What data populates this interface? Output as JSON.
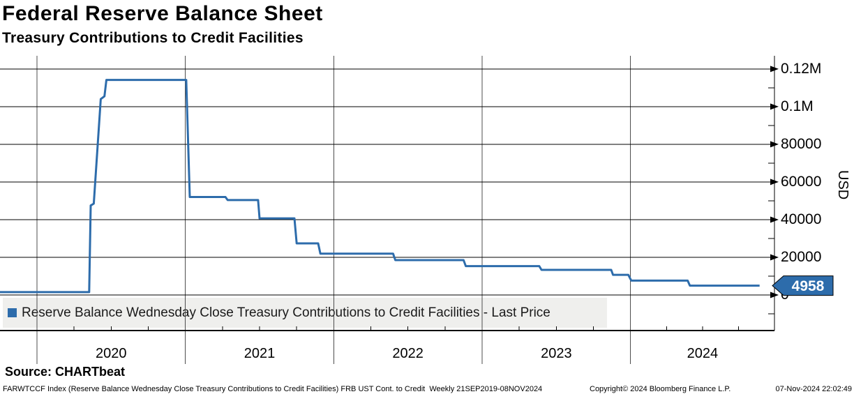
{
  "header": {
    "title": "Federal Reserve Balance Sheet",
    "subtitle": "Treasury Contributions to Credit Facilities"
  },
  "legend": {
    "label": "Reserve Balance Wednesday Close Treasury Contributions to Credit Facilities - Last Price",
    "color": "#2d6cab"
  },
  "last_price_tag": {
    "value": "4958",
    "bg": "#2d6cab",
    "text_color": "#ffffff"
  },
  "source": {
    "label": "Source: CHARTbeat"
  },
  "footer": {
    "left": "FARWTCCF Index (Reserve Balance Wednesday Close Treasury Contributions to Credit Facilities) FRB UST Cont. to Credit  Weekly 21SEP2019-08NOV2024",
    "copyright": "Copyright© 2024 Bloomberg Finance L.P.",
    "timestamp": "07-Nov-2024 22:02:49"
  },
  "chart_data": {
    "type": "line",
    "title": "Federal Reserve Balance Sheet",
    "subtitle": "Treasury Contributions to Credit Facilities",
    "xlabel": "",
    "ylabel": "USD",
    "grid": "on",
    "legend_position": "bottom-left",
    "x_range": [
      2019.751,
      2024.97
    ],
    "y_range": [
      -18900,
      127000
    ],
    "x_year_lines": [
      2020,
      2021,
      2022,
      2023,
      2024
    ],
    "x_year_labels": [
      "2020",
      "2021",
      "2022",
      "2023",
      "2024"
    ],
    "y_ticks": [
      {
        "v": 0,
        "label": "0"
      },
      {
        "v": 20000,
        "label": "20000"
      },
      {
        "v": 40000,
        "label": "40000"
      },
      {
        "v": 60000,
        "label": "60000"
      },
      {
        "v": 80000,
        "label": "80000"
      },
      {
        "v": 100000,
        "label": "0.1M"
      },
      {
        "v": 120000,
        "label": "0.12M"
      }
    ],
    "y_minor_ticks": [
      -10000,
      10000,
      30000,
      50000,
      70000,
      90000,
      110000
    ],
    "period": "Weekly 21SEP2019-08NOV2024",
    "last_price": 4958,
    "series": [
      {
        "name": "Reserve Balance Wednesday Close Treasury Contributions to Credit Facilities - Last Price",
        "color": "#2d6cab",
        "step_points": [
          [
            2019.751,
            1500
          ],
          [
            2020.352,
            1500
          ],
          [
            2020.362,
            47500
          ],
          [
            2020.383,
            48500
          ],
          [
            2020.43,
            104000
          ],
          [
            2020.455,
            105500
          ],
          [
            2020.468,
            114200
          ],
          [
            2021.006,
            114200
          ],
          [
            2021.03,
            52000
          ],
          [
            2021.27,
            52000
          ],
          [
            2021.285,
            50400
          ],
          [
            2021.49,
            50400
          ],
          [
            2021.5,
            40700
          ],
          [
            2021.735,
            40700
          ],
          [
            2021.75,
            27400
          ],
          [
            2021.895,
            27400
          ],
          [
            2021.91,
            21900
          ],
          [
            2022.4,
            21900
          ],
          [
            2022.415,
            18500
          ],
          [
            2022.875,
            18500
          ],
          [
            2022.89,
            15300
          ],
          [
            2023.385,
            15300
          ],
          [
            2023.4,
            13300
          ],
          [
            2023.87,
            13300
          ],
          [
            2023.882,
            10700
          ],
          [
            2023.985,
            10700
          ],
          [
            2024.005,
            7600
          ],
          [
            2024.385,
            7600
          ],
          [
            2024.4,
            4958
          ],
          [
            2024.87,
            4958
          ]
        ]
      }
    ]
  }
}
